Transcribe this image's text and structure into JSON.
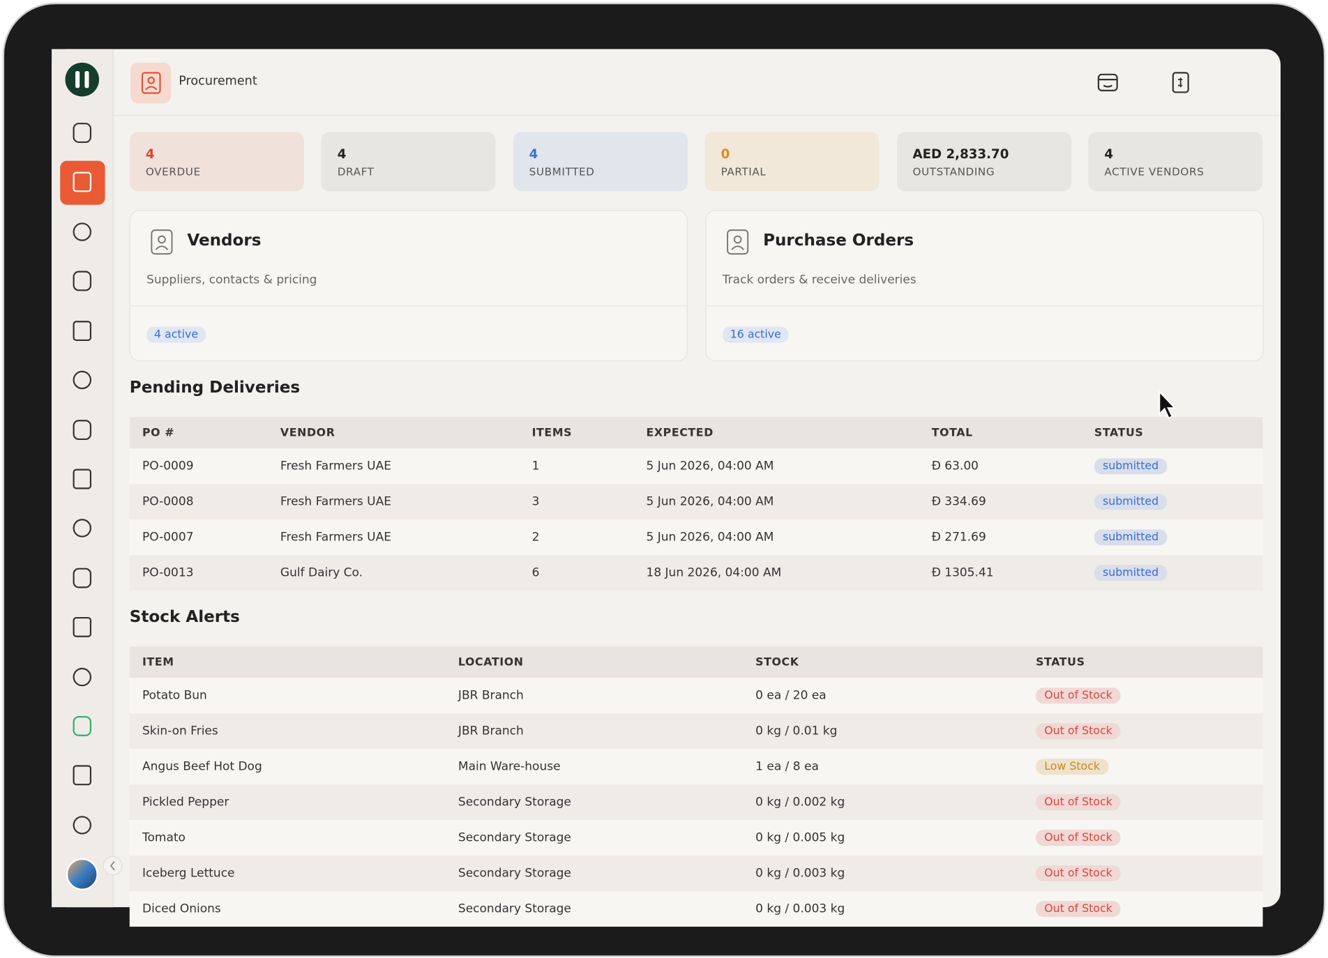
{
  "header": {
    "title": "Procurement"
  },
  "stats": [
    {
      "value": "4",
      "label": "OVERDUE",
      "color": "#d9472b"
    },
    {
      "value": "4",
      "label": "DRAFT",
      "color": "#222222"
    },
    {
      "value": "4",
      "label": "SUBMITTED",
      "color": "#3a6fd1"
    },
    {
      "value": "0",
      "label": "PARTIAL",
      "color": "#e08a1e"
    },
    {
      "value": "AED 2,833.70",
      "label": "OUTSTANDING",
      "color": "#222222"
    },
    {
      "value": "4",
      "label": "ACTIVE VENDORS",
      "color": "#222222"
    }
  ],
  "cards": [
    {
      "title": "Vendors",
      "subtitle": "Suppliers, contacts & pricing",
      "badge": "4 active"
    },
    {
      "title": "Purchase Orders",
      "subtitle": "Track orders & receive deliveries",
      "badge": "16 active"
    }
  ],
  "pending": {
    "title": "Pending Deliveries",
    "columns": [
      "PO #",
      "VENDOR",
      "ITEMS",
      "EXPECTED",
      "TOTAL",
      "STATUS"
    ],
    "rows": [
      [
        "PO-0009",
        "Fresh Farmers UAE",
        "1",
        "5 Jun 2026, 04:00 AM",
        "Đ 63.00",
        "submitted"
      ],
      [
        "PO-0008",
        "Fresh Farmers UAE",
        "3",
        "5 Jun 2026, 04:00 AM",
        "Đ 334.69",
        "submitted"
      ],
      [
        "PO-0007",
        "Fresh Farmers UAE",
        "2",
        "5 Jun 2026, 04:00 AM",
        "Đ 271.69",
        "submitted"
      ],
      [
        "PO-0013",
        "Gulf Dairy Co.",
        "6",
        "18 Jun 2026, 04:00 AM",
        "Đ 1305.41",
        "submitted"
      ]
    ],
    "status_color": "#3a6fd1"
  },
  "stock": {
    "title": "Stock Alerts",
    "columns": [
      "ITEM",
      "LOCATION",
      "STOCK",
      "STATUS"
    ],
    "rows": [
      [
        "Potato Bun",
        "JBR Branch",
        "0 ea / 20 ea",
        "Out of Stock"
      ],
      [
        "Skin-on Fries",
        "JBR Branch",
        "0 kg / 0.01 kg",
        "Out of Stock"
      ],
      [
        "Angus Beef Hot Dog",
        "Main Ware-house",
        "1 ea / 8 ea",
        "Low Stock"
      ],
      [
        "Pickled Pepper",
        "Secondary Storage",
        "0 kg / 0.002 kg",
        "Out of Stock"
      ],
      [
        "Tomato",
        "Secondary Storage",
        "0 kg / 0.005 kg",
        "Out of Stock"
      ],
      [
        "Iceberg Lettuce",
        "Secondary Storage",
        "0 kg / 0.003 kg",
        "Out of Stock"
      ],
      [
        "Diced Onions",
        "Secondary Storage",
        "0 kg / 0.003 kg",
        "Out of Stock"
      ]
    ],
    "status_colors": [
      "#d9473f",
      "#d9473f",
      "#c98a1a",
      "#d9473f",
      "#d9473f",
      "#d9473f",
      "#d9473f"
    ]
  }
}
